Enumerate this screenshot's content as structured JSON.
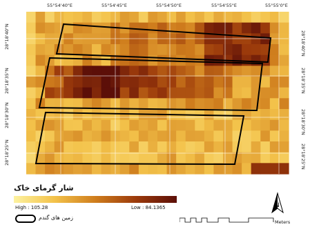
{
  "map": {
    "top_coords": [
      "55°54'40\"E",
      "55°54'45\"E",
      "55°54'50\"E",
      "55°54'55\"E",
      "55°55'0\"E"
    ],
    "side_coords": [
      "28°18'40\"N",
      "28°18'35\"N",
      "28°18'30\"N",
      "28°18'25\"N"
    ],
    "grid_note": "heat raster 28x15 cells, values 0 (high/light) to 1 (low/dark)"
  },
  "legend": {
    "title": "شار گرمای خاک",
    "high_label": "High : 105.28",
    "low_label": "Low : 84.1365",
    "field_label": "زمین های گندم"
  },
  "north_arrow": {
    "label": "N",
    "icon": "north-arrow-icon"
  },
  "scale": {
    "unit": "Meters"
  },
  "colors": {
    "ramp": [
      "#fdf2a0",
      "#f3c24a",
      "#cf7d1d",
      "#9b3a0b",
      "#5c0f08"
    ],
    "field_outline": "#000000"
  }
}
